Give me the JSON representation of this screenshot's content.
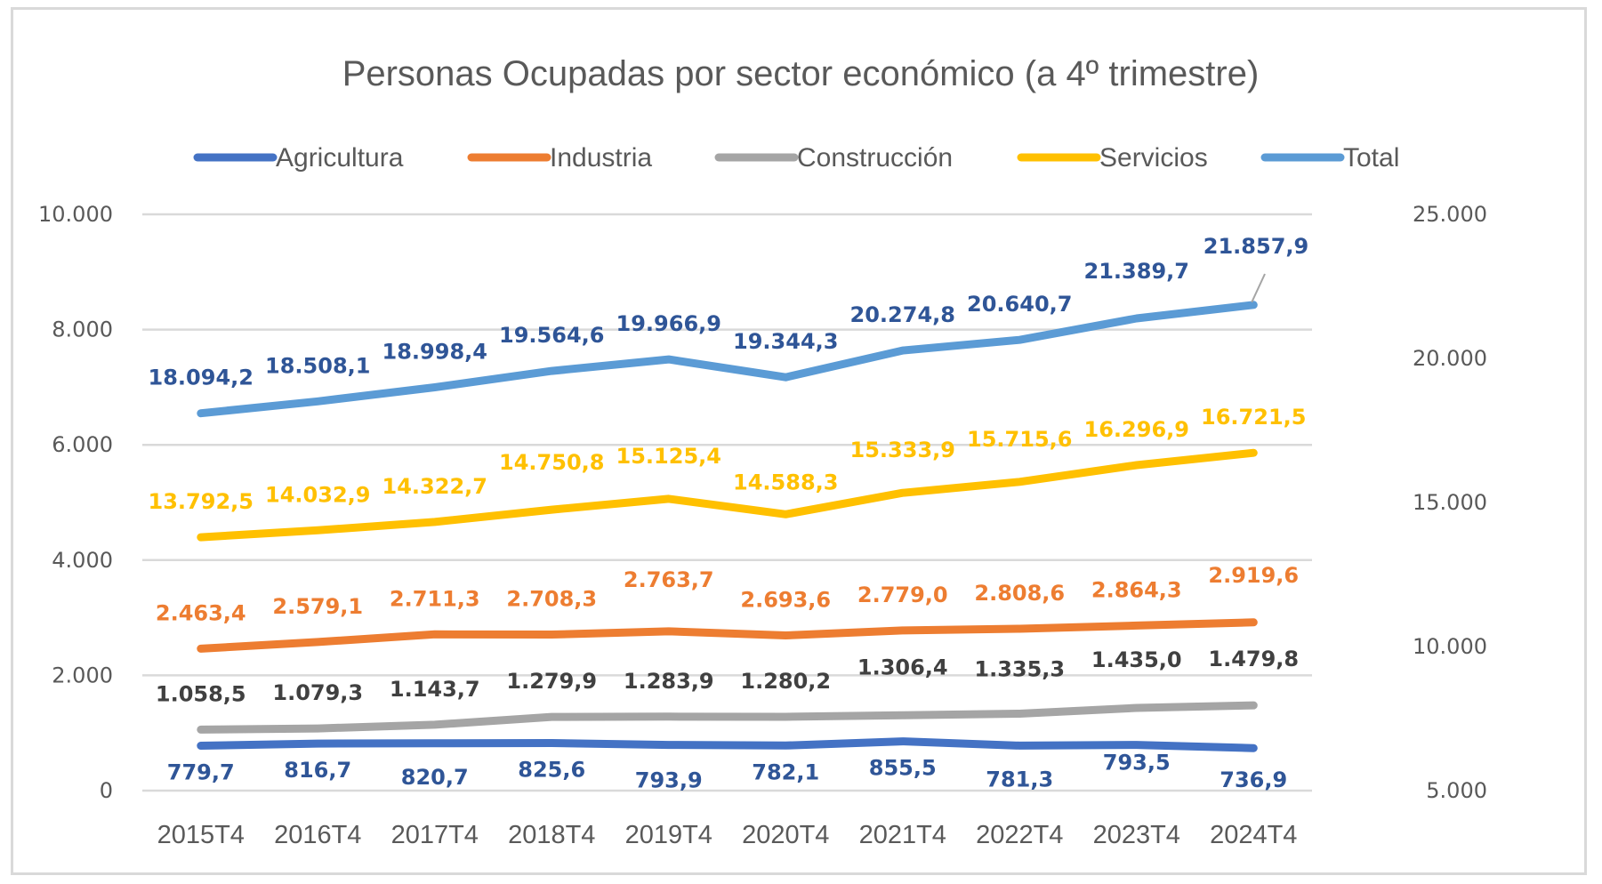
{
  "chart_data": {
    "type": "line",
    "title": "Personas Ocupadas por sector económico (a 4º trimestre)",
    "xlabel": "",
    "ylabel": "",
    "categories": [
      "2015T4",
      "2016T4",
      "2017T4",
      "2018T4",
      "2019T4",
      "2020T4",
      "2021T4",
      "2022T4",
      "2023T4",
      "2024T4"
    ],
    "y_left": {
      "ylim": [
        0,
        10000
      ],
      "ticks": [
        0,
        2000,
        4000,
        6000,
        8000,
        10000
      ],
      "tick_labels": [
        "0",
        "2.000",
        "4.000",
        "6.000",
        "8.000",
        "10.000"
      ]
    },
    "y_right": {
      "ylim": [
        5000,
        25000
      ],
      "ticks": [
        5000,
        10000,
        15000,
        20000,
        25000
      ],
      "tick_labels": [
        "5.000",
        "10.000",
        "15.000",
        "20.000",
        "25.000"
      ]
    },
    "grid": true,
    "legend_position": "top",
    "series": [
      {
        "name": "Agricultura",
        "axis": "left",
        "color": "#4472c4",
        "label_color": "#2f5597",
        "label_position": "below",
        "values": [
          779.7,
          816.7,
          820.7,
          825.6,
          793.9,
          782.1,
          855.5,
          781.3,
          793.5,
          736.9
        ],
        "labels": [
          "779,7",
          "816,7",
          "820,7",
          "825,6",
          "793,9",
          "782,1",
          "855,5",
          "781,3",
          "793,5",
          "736,9"
        ]
      },
      {
        "name": "Industria",
        "axis": "left",
        "color": "#ed7d31",
        "label_color": "#ed7d31",
        "label_position": "above",
        "values": [
          2463.4,
          2579.1,
          2711.3,
          2708.3,
          2763.7,
          2693.6,
          2779.0,
          2808.6,
          2864.3,
          2919.6
        ],
        "labels": [
          "2.463,4",
          "2.579,1",
          "2.711,3",
          "2.708,3",
          "2.763,7",
          "2.693,6",
          "2.779,0",
          "2.808,6",
          "2.864,3",
          "2.919,6"
        ]
      },
      {
        "name": "Construcción",
        "axis": "left",
        "color": "#a5a5a5",
        "label_color": "#404040",
        "label_position": "above",
        "values": [
          1058.5,
          1079.3,
          1143.7,
          1279.9,
          1283.9,
          1280.2,
          1306.4,
          1335.3,
          1435.0,
          1479.8
        ],
        "labels": [
          "1.058,5",
          "1.079,3",
          "1.143,7",
          "1.279,9",
          "1.283,9",
          "1.280,2",
          "1.306,4",
          "1.335,3",
          "1.435,0",
          "1.479,8"
        ]
      },
      {
        "name": "Servicios",
        "axis": "right",
        "color": "#ffc000",
        "label_color": "#ffc000",
        "label_position": "above",
        "values": [
          13792.5,
          14032.9,
          14322.7,
          14750.8,
          15125.4,
          14588.3,
          15333.9,
          15715.6,
          16296.9,
          16721.5
        ],
        "labels": [
          "13.792,5",
          "14.032,9",
          "14.322,7",
          "14.750,8",
          "15.125,4",
          "14.588,3",
          "15.333,9",
          "15.715,6",
          "16.296,9",
          "16.721,5"
        ]
      },
      {
        "name": "Total",
        "axis": "right",
        "color": "#5b9bd5",
        "label_color": "#2f5597",
        "label_position": "above",
        "values": [
          18094.2,
          18508.1,
          18998.4,
          19564.6,
          19966.9,
          19344.3,
          20274.8,
          20640.7,
          21389.7,
          21857.9
        ],
        "labels": [
          "18.094,2",
          "18.508,1",
          "18.998,4",
          "19.564,6",
          "19.966,9",
          "19.344,3",
          "20.274,8",
          "20.640,7",
          "21.389,7",
          "21.857,9"
        ]
      }
    ]
  }
}
